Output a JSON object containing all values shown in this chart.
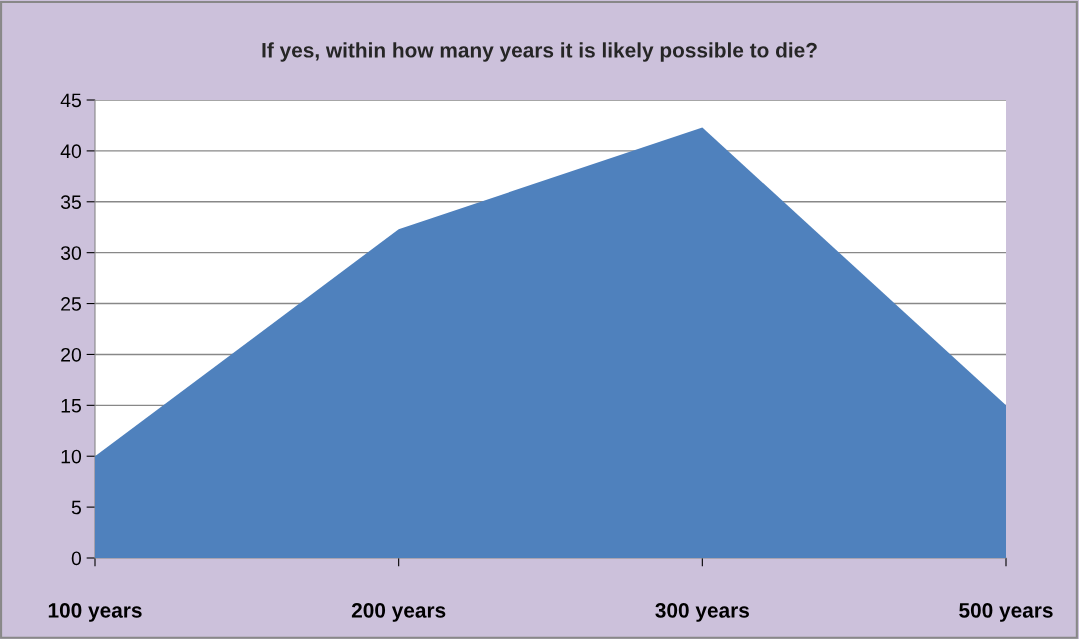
{
  "chart_data": {
    "type": "area",
    "title": "If yes, within how many years it is likely possible to die?",
    "categories": [
      "100 years",
      "200 years",
      "300 years",
      "500 years"
    ],
    "series": [
      {
        "color": "#4f81bd",
        "values": [
          10,
          32.3,
          42.3,
          15
        ]
      }
    ],
    "ylim": [
      0,
      45
    ],
    "yticks": [
      0,
      5,
      10,
      15,
      20,
      25,
      30,
      35,
      40,
      45
    ],
    "grid": "y"
  }
}
